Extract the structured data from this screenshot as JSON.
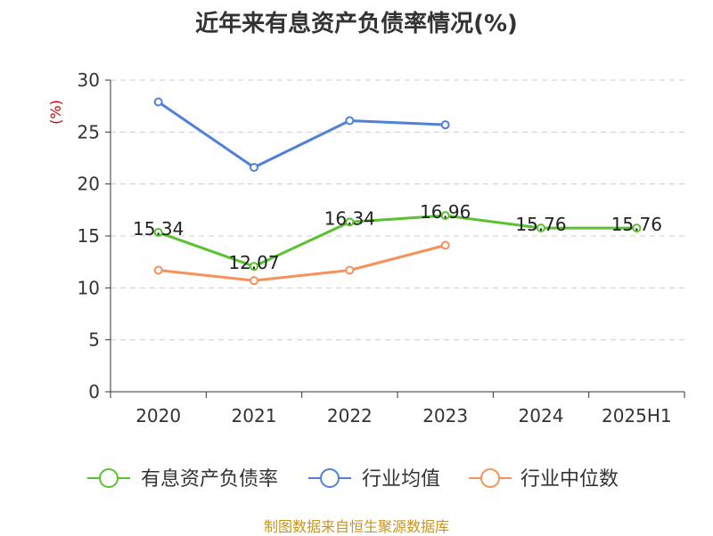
{
  "title": "近年来有息资产负债率情况(%)",
  "source": "制图数据来自恒生聚源数据库",
  "chart_data": {
    "type": "line",
    "title": "近年来有息资产负债率情况(%)",
    "ylabel": "(%)",
    "xlabel": "",
    "categories": [
      "2020",
      "2021",
      "2022",
      "2023",
      "2024",
      "2025H1"
    ],
    "ylim": [
      0,
      30
    ],
    "yticks": [
      0,
      5,
      10,
      15,
      20,
      25,
      30
    ],
    "grid": true,
    "legend": "bottom",
    "series": [
      {
        "name": "有息资产负债率",
        "color": "#5ac12f",
        "values": [
          15.34,
          12.07,
          16.34,
          16.96,
          15.76,
          15.76
        ],
        "labels": [
          "15.34",
          "12.07",
          "16.34",
          "16.96",
          "15.76",
          "15.76"
        ]
      },
      {
        "name": "行业均值",
        "color": "#4f81d9",
        "values": [
          27.9,
          21.6,
          26.1,
          25.7,
          null,
          null
        ]
      },
      {
        "name": "行业中位数",
        "color": "#f7915a",
        "values": [
          11.7,
          10.7,
          11.7,
          14.1,
          null,
          null
        ]
      }
    ]
  }
}
